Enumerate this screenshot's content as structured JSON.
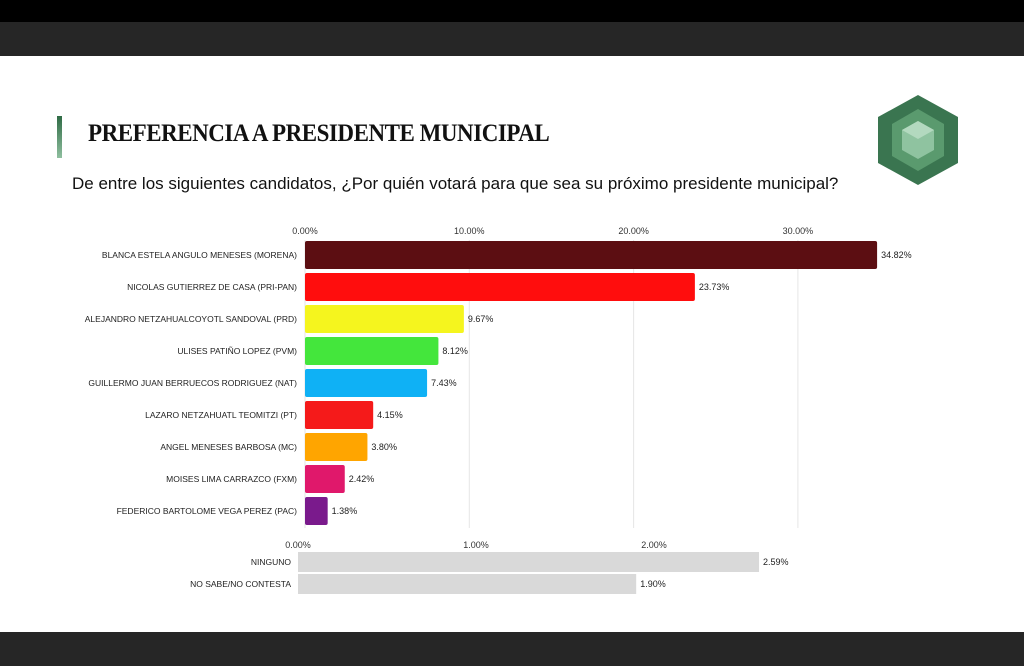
{
  "title": "PREFERENCIA A PRESIDENTE MUNICIPAL",
  "question": "De entre los siguientes candidatos, ¿Por quién votará para que sea su próximo presidente municipal?",
  "chart_data": [
    {
      "type": "bar",
      "orientation": "horizontal",
      "xlim": [
        0,
        35
      ],
      "ticks": [
        0,
        10,
        20,
        30
      ],
      "tick_labels": [
        "0.00%",
        "10.00%",
        "20.00%",
        "30.00%"
      ],
      "grid": true,
      "categories": [
        "BLANCA ESTELA ANGULO MENESES (MORENA)",
        "NICOLAS GUTIERREZ DE CASA (PRI-PAN)",
        "ALEJANDRO NETZAHUALCOYOTL SANDOVAL (PRD)",
        "ULISES PATIÑO LOPEZ (PVM)",
        "GUILLERMO JUAN BERRUECOS RODRIGUEZ (NAT)",
        "LAZARO NETZAHUATL TEOMITZI (PT)",
        "ANGEL MENESES BARBOSA (MC)",
        "MOISES LIMA CARRAZCO (FXM)",
        "FEDERICO BARTOLOME VEGA PEREZ (PAC)"
      ],
      "values": [
        34.82,
        23.73,
        9.67,
        8.12,
        7.43,
        4.15,
        3.8,
        2.42,
        1.38
      ],
      "value_labels": [
        "34.82%",
        "23.73%",
        "9.67%",
        "8.12%",
        "7.43%",
        "4.15%",
        "3.80%",
        "2.42%",
        "1.38%"
      ],
      "colors": [
        "#5c0e12",
        "#ff0d0d",
        "#f5f51e",
        "#44e63c",
        "#0fb1f5",
        "#f51a1a",
        "#ffa500",
        "#e0186b",
        "#7a1a8c"
      ]
    },
    {
      "type": "bar",
      "orientation": "horizontal",
      "xlim": [
        0,
        2.6
      ],
      "ticks": [
        0,
        1,
        2
      ],
      "tick_labels": [
        "0.00%",
        "1.00%",
        "2.00%"
      ],
      "grid": false,
      "categories": [
        "NINGUNO",
        "NO SABE/NO CONTESTA"
      ],
      "values": [
        2.59,
        1.9
      ],
      "value_labels": [
        "2.59%",
        "1.90%"
      ],
      "colors": [
        "#d9d9d9",
        "#d9d9d9"
      ]
    }
  ]
}
